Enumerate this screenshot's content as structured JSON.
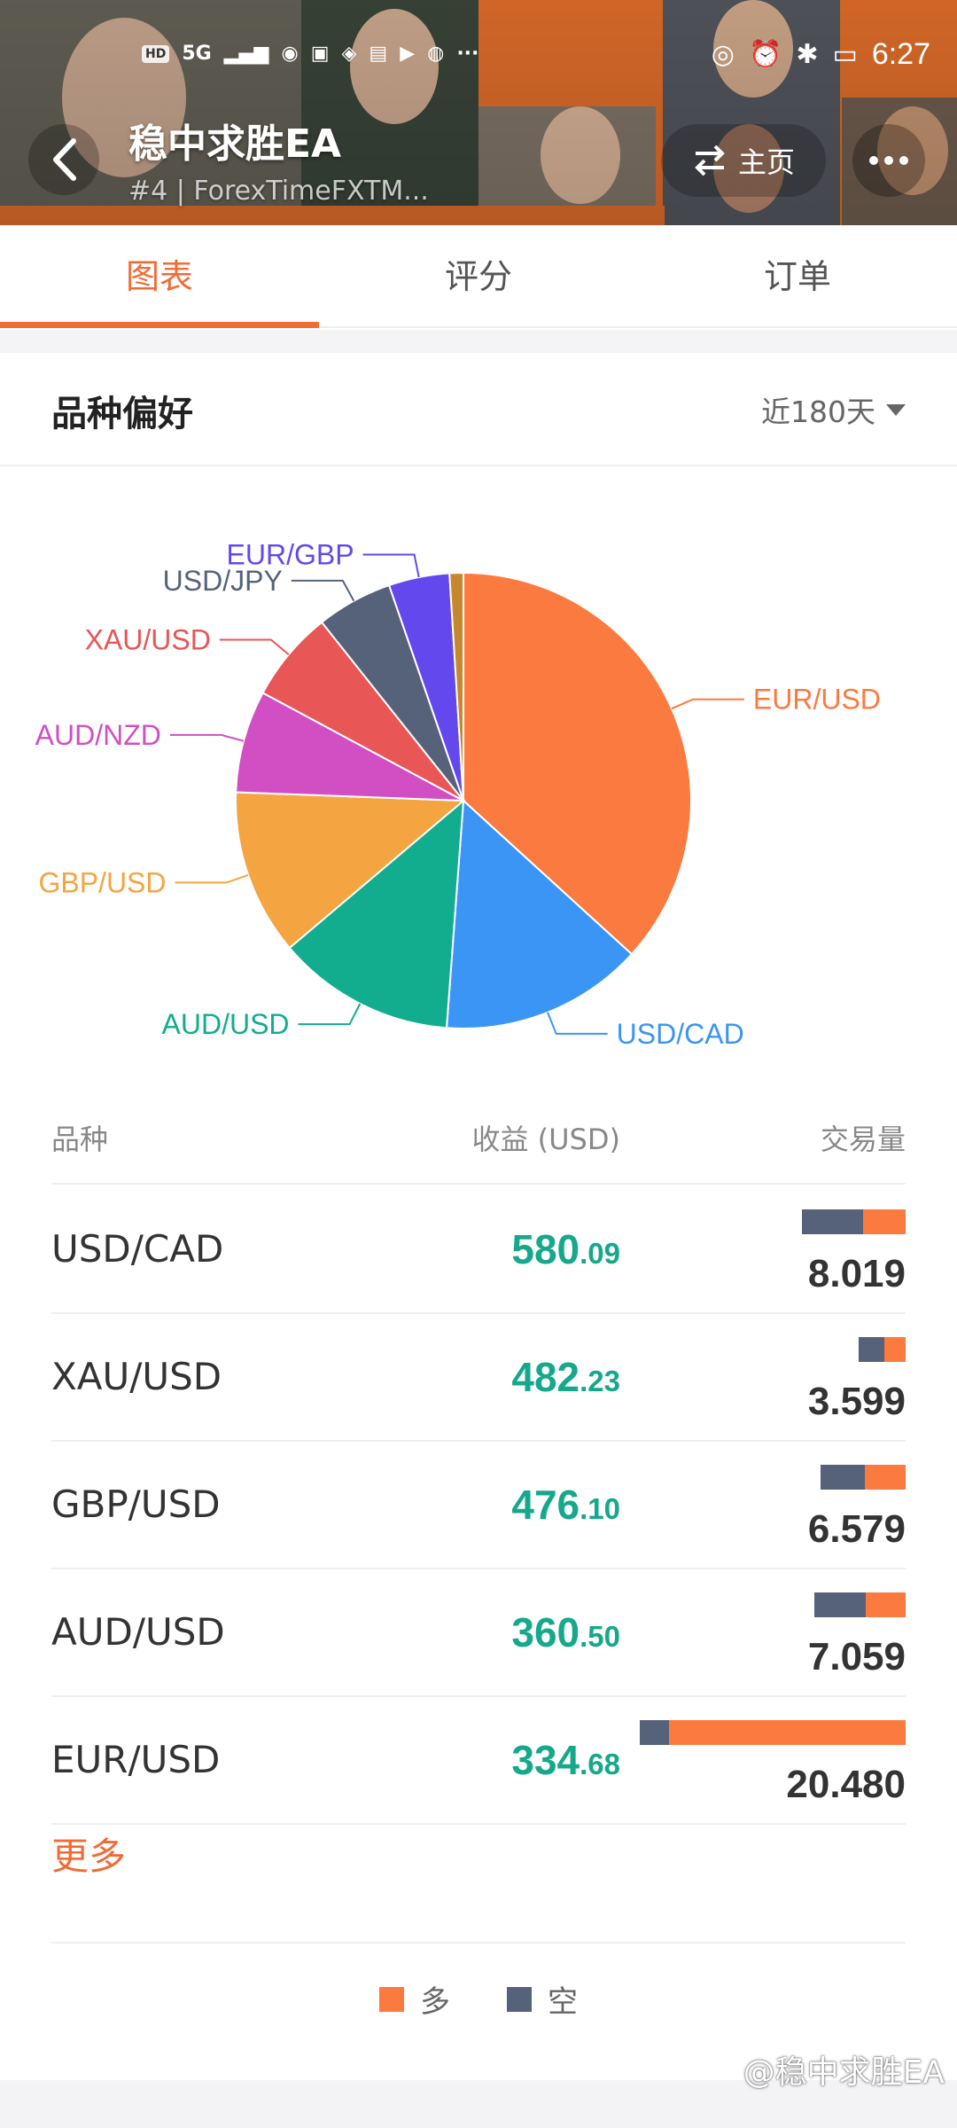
{
  "status_bar": {
    "left_badges": [
      "HD",
      "5G"
    ],
    "time": "6:27",
    "icons": [
      "hotspot-icon",
      "app-notification-icon",
      "bulb-icon",
      "huawei-icon",
      "play-icon",
      "browser-icon",
      "ellipsis-icon",
      "eye-icon",
      "alarm-icon",
      "bluetooth-icon",
      "battery-charging-icon"
    ]
  },
  "header": {
    "title": "稳中求胜EA",
    "subtitle": "#4 | ForexTimeFXTM...",
    "home_label": "主页"
  },
  "tabs": [
    {
      "label": "图表",
      "active": true
    },
    {
      "label": "评分",
      "active": false
    },
    {
      "label": "订单",
      "active": false
    }
  ],
  "section": {
    "title": "品种偏好",
    "period": "近180天"
  },
  "chart_data": {
    "type": "pie",
    "slices": [
      {
        "label": "EUR/USD",
        "value": 37.5,
        "color": "#fb7a3f"
      },
      {
        "label": "USD/CAD",
        "value": 14.7,
        "color": "#3a95f5"
      },
      {
        "label": "AUD/USD",
        "value": 12.9,
        "color": "#12ad8e"
      },
      {
        "label": "GBP/USD",
        "value": 12.0,
        "color": "#f5a442"
      },
      {
        "label": "AUD/NZD",
        "value": 7.4,
        "color": "#d14fc2"
      },
      {
        "label": "XAU/USD",
        "value": 6.6,
        "color": "#e85656"
      },
      {
        "label": "USD/JPY",
        "value": 5.5,
        "color": "#56627a"
      },
      {
        "label": "EUR/GBP",
        "value": 4.4,
        "color": "#6348ee"
      },
      {
        "label": "",
        "value": 1.0,
        "color": "#c7872e"
      }
    ]
  },
  "table": {
    "headers": {
      "pair": "品种",
      "profit": "收益 (USD)",
      "volume": "交易量"
    },
    "rows": [
      {
        "pair": "USD/CAD",
        "profit_int": "580",
        "profit_dec": ".09",
        "volume": "8.019",
        "short_ratio": 0.59
      },
      {
        "pair": "XAU/USD",
        "profit_int": "482",
        "profit_dec": ".23",
        "volume": "3.599",
        "short_ratio": 0.55
      },
      {
        "pair": "GBP/USD",
        "profit_int": "476",
        "profit_dec": ".10",
        "volume": "6.579",
        "short_ratio": 0.52
      },
      {
        "pair": "AUD/USD",
        "profit_int": "360",
        "profit_dec": ".50",
        "volume": "7.059",
        "short_ratio": 0.56
      },
      {
        "pair": "EUR/USD",
        "profit_int": "334",
        "profit_dec": ".68",
        "volume": "20.480",
        "short_ratio": 0.11
      }
    ]
  },
  "more_label": "更多",
  "legend": [
    {
      "label": "多",
      "color": "#fb7a3f"
    },
    {
      "label": "空",
      "color": "#56627a"
    }
  ],
  "watermark": "@稳中求胜EA"
}
